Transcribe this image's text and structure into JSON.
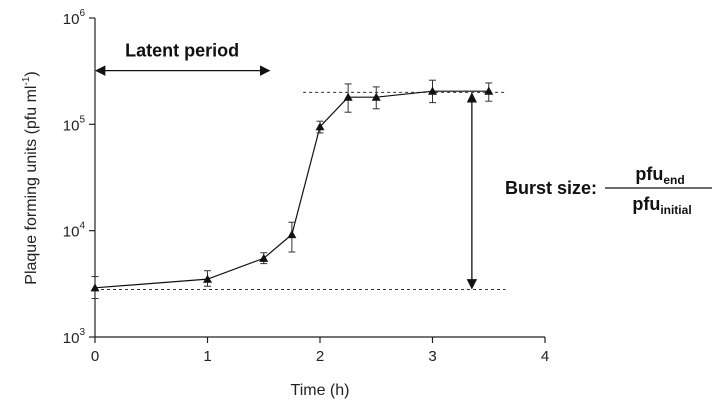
{
  "chart_data": {
    "type": "line",
    "xlabel": "Time (h)",
    "ylabel": "Plaque forming units (pfu ml",
    "ylabel_sup": "-1",
    "ylabel_tail": ")",
    "y_scale": "log",
    "xlim": [
      0,
      4
    ],
    "ylim": [
      1000,
      1000000
    ],
    "x_ticks": [
      0,
      1,
      2,
      3,
      4
    ],
    "x_tick_labels": [
      "0",
      "1",
      "2",
      "3",
      "4"
    ],
    "y_ticks": [
      1000,
      10000,
      100000,
      1000000
    ],
    "y_tick_base": "10",
    "y_tick_exponents": [
      "3",
      "4",
      "5",
      "6"
    ],
    "grid": false,
    "series": [
      {
        "marker": "triangle",
        "color": "#111111",
        "points": [
          {
            "x": 0,
            "y": 2900,
            "err_low": 2300,
            "err_high": 3700
          },
          {
            "x": 1,
            "y": 3500,
            "err_low": 3000,
            "err_high": 4200
          },
          {
            "x": 1.5,
            "y": 5500,
            "err_low": 4900,
            "err_high": 6200
          },
          {
            "x": 1.75,
            "y": 9200,
            "err_low": 6300,
            "err_high": 12000
          },
          {
            "x": 2,
            "y": 95000,
            "err_low": 83000,
            "err_high": 107000
          },
          {
            "x": 2.25,
            "y": 180000,
            "err_low": 130000,
            "err_high": 240000
          },
          {
            "x": 2.5,
            "y": 180000,
            "err_low": 140000,
            "err_high": 225000
          },
          {
            "x": 3,
            "y": 205000,
            "err_low": 160000,
            "err_high": 260000
          },
          {
            "x": 3.5,
            "y": 205000,
            "err_low": 165000,
            "err_high": 245000
          }
        ]
      }
    ],
    "reference_lines": {
      "upper": {
        "y": 200000,
        "x_from": 1.85,
        "x_to": 3.65
      },
      "lower": {
        "y": 2800,
        "x_from": 0,
        "x_to": 3.65
      }
    },
    "annotations": {
      "latent_period": {
        "text": "Latent period",
        "x_from": 0,
        "x_to": 1.55,
        "y": 320000
      },
      "burst_arrow": {
        "x": 3.35,
        "y_from": 200000,
        "y_to": 2800
      },
      "burst_size": {
        "label": "Burst size:",
        "numerator": "pfu",
        "numerator_sub": "end",
        "denominator": "pfu",
        "denominator_sub": "initial"
      }
    }
  }
}
